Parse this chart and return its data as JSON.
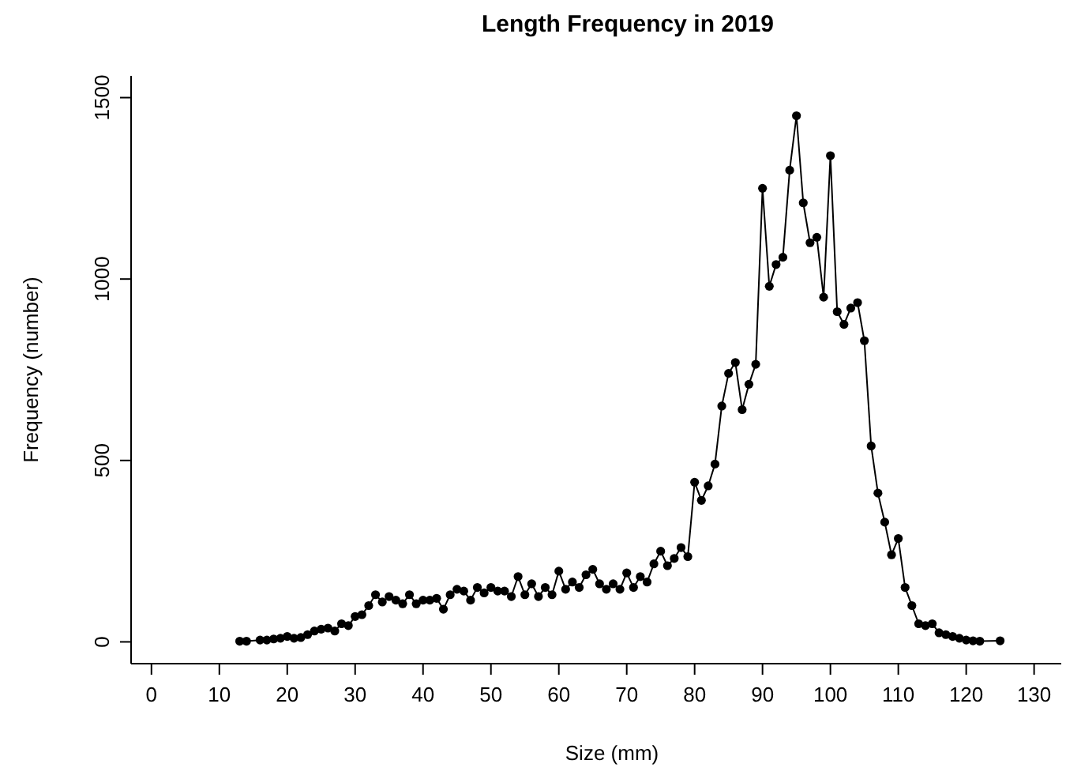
{
  "chart_data": {
    "type": "line",
    "title": "Length Frequency in 2019",
    "xlabel": "Size (mm)",
    "ylabel": "Frequency (number)",
    "marker": "circle",
    "line_style": "solid",
    "grid": false,
    "x": [
      13,
      14,
      16,
      17,
      18,
      19,
      20,
      21,
      22,
      23,
      24,
      25,
      26,
      27,
      28,
      29,
      30,
      31,
      32,
      33,
      34,
      35,
      36,
      37,
      38,
      39,
      40,
      41,
      42,
      43,
      44,
      45,
      46,
      47,
      48,
      49,
      50,
      51,
      52,
      53,
      54,
      55,
      56,
      57,
      58,
      59,
      60,
      61,
      62,
      63,
      64,
      65,
      66,
      67,
      68,
      69,
      70,
      71,
      72,
      73,
      74,
      75,
      76,
      77,
      78,
      79,
      80,
      81,
      82,
      83,
      84,
      85,
      86,
      87,
      88,
      89,
      90,
      91,
      92,
      93,
      94,
      95,
      96,
      97,
      98,
      99,
      100,
      101,
      102,
      103,
      104,
      105,
      106,
      107,
      108,
      109,
      110,
      111,
      112,
      113,
      114,
      115,
      116,
      117,
      118,
      119,
      120,
      121,
      122,
      125
    ],
    "series": [
      {
        "color": "#000000",
        "values": [
          2,
          2,
          5,
          5,
          8,
          10,
          15,
          10,
          12,
          20,
          30,
          35,
          38,
          30,
          50,
          45,
          70,
          75,
          100,
          130,
          110,
          125,
          115,
          105,
          130,
          105,
          115,
          115,
          120,
          90,
          130,
          145,
          140,
          115,
          150,
          135,
          150,
          140,
          140,
          125,
          180,
          130,
          160,
          125,
          150,
          130,
          195,
          145,
          165,
          150,
          185,
          200,
          160,
          145,
          160,
          145,
          190,
          150,
          180,
          165,
          215,
          250,
          210,
          230,
          260,
          235,
          440,
          390,
          430,
          490,
          650,
          740,
          770,
          640,
          710,
          765,
          1250,
          980,
          1040,
          1060,
          1300,
          1450,
          1210,
          1100,
          1115,
          950,
          1340,
          910,
          875,
          920,
          935,
          830,
          540,
          410,
          330,
          240,
          285,
          150,
          100,
          50,
          45,
          50,
          25,
          20,
          15,
          10,
          5,
          3,
          2,
          3
        ]
      }
    ],
    "xlim": [
      -3,
      134
    ],
    "ylim": [
      -60,
      1560
    ],
    "xticks": [
      0,
      10,
      20,
      30,
      40,
      50,
      60,
      70,
      80,
      90,
      100,
      110,
      120,
      130
    ],
    "yticks": [
      0,
      500,
      1000,
      1500
    ]
  }
}
